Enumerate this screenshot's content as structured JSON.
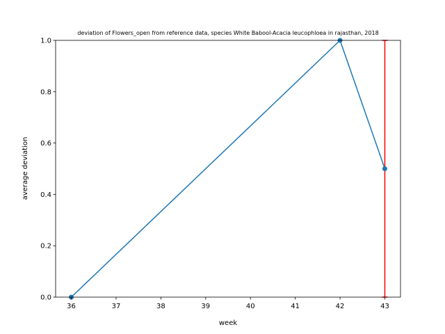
{
  "chart_data": {
    "type": "line",
    "title": "deviation of Flowers_open from reference data, species White Babool-Acacia leucophloea in rajasthan, 2018",
    "xlabel": "week",
    "ylabel": "average deviation",
    "xlim": [
      35.65,
      43.35
    ],
    "ylim": [
      0.0,
      1.0
    ],
    "xticks": [
      36,
      37,
      38,
      39,
      40,
      41,
      42,
      43
    ],
    "yticks": [
      0.0,
      0.2,
      0.4,
      0.6,
      0.8,
      1.0
    ],
    "ytick_labels": [
      "0.0",
      "0.2",
      "0.4",
      "0.6",
      "0.8",
      "1.0"
    ],
    "grid": false,
    "series": [
      {
        "color": "#1f77b4",
        "x": [
          36,
          42,
          43
        ],
        "y": [
          0.0,
          1.0,
          0.5
        ]
      }
    ],
    "vertical_lines": [
      {
        "x": 43,
        "y": [
          0.0,
          1.0
        ],
        "color": "#ff0000"
      }
    ]
  }
}
